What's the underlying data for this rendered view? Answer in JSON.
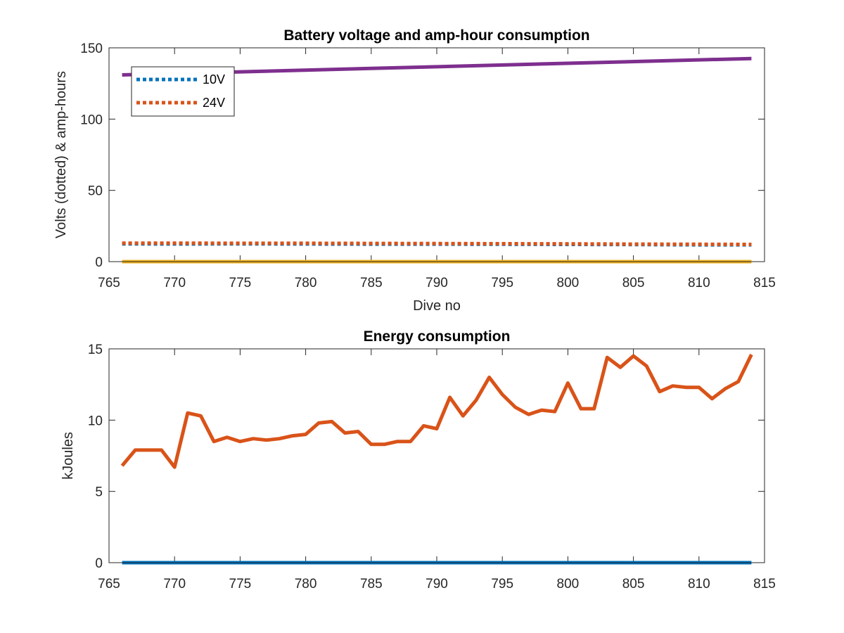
{
  "chart_data": [
    {
      "type": "line",
      "title": "Battery voltage and amp-hour consumption",
      "xlabel": "Dive no",
      "ylabel": "Volts (dotted) & amp-hours",
      "xlim": [
        765,
        815
      ],
      "ylim": [
        0,
        150
      ],
      "xticks": [
        765,
        770,
        775,
        780,
        785,
        790,
        795,
        800,
        805,
        810,
        815
      ],
      "yticks": [
        0,
        50,
        100,
        150
      ],
      "legend_position": "top-left",
      "series": [
        {
          "name": "10V",
          "style": "dotted",
          "color": "#0072BD",
          "in_legend": true,
          "x": [
            766,
            770,
            775,
            780,
            785,
            790,
            795,
            800,
            805,
            810,
            814
          ],
          "y": [
            12.5,
            12.4,
            12.5,
            12.4,
            12.3,
            12.3,
            12.2,
            12.1,
            12.0,
            11.8,
            11.8
          ]
        },
        {
          "name": "24V",
          "style": "dotted",
          "color": "#D95319",
          "in_legend": true,
          "x": [
            766,
            770,
            775,
            780,
            785,
            790,
            795,
            800,
            805,
            810,
            814
          ],
          "y": [
            13.0,
            13.0,
            12.9,
            12.9,
            12.8,
            12.7,
            12.6,
            12.5,
            12.3,
            12.2,
            12.1
          ]
        },
        {
          "style": "solid",
          "color": "#EDB120",
          "in_legend": false,
          "x": [
            766,
            814
          ],
          "y": [
            0,
            0
          ]
        },
        {
          "style": "solid",
          "color": "#7E2F8E",
          "in_legend": false,
          "x": [
            766,
            814
          ],
          "y": [
            131,
            142.5
          ]
        }
      ]
    },
    {
      "type": "line",
      "title": "Energy consumption",
      "xlabel": "",
      "ylabel": "kJoules",
      "xlim": [
        765,
        815
      ],
      "ylim": [
        0,
        15
      ],
      "xticks": [
        765,
        770,
        775,
        780,
        785,
        790,
        795,
        800,
        805,
        810,
        815
      ],
      "yticks": [
        0,
        5,
        10,
        15
      ],
      "series": [
        {
          "style": "solid",
          "color": "#0072BD",
          "x": [
            766,
            814
          ],
          "y": [
            0,
            0
          ]
        },
        {
          "style": "solid",
          "color": "#D95319",
          "x": [
            766,
            767,
            768,
            769,
            770,
            771,
            772,
            773,
            774,
            775,
            776,
            777,
            778,
            779,
            780,
            781,
            782,
            783,
            784,
            785,
            786,
            787,
            788,
            789,
            790,
            791,
            792,
            793,
            794,
            795,
            796,
            797,
            798,
            799,
            800,
            801,
            802,
            803,
            804,
            805,
            806,
            807,
            808,
            809,
            810,
            811,
            812,
            813,
            814
          ],
          "y": [
            6.8,
            7.9,
            7.9,
            7.9,
            6.7,
            10.5,
            10.3,
            8.5,
            8.8,
            8.5,
            8.7,
            8.6,
            8.7,
            8.9,
            9.0,
            9.8,
            9.9,
            9.1,
            9.2,
            8.3,
            8.3,
            8.5,
            8.5,
            9.6,
            9.4,
            11.6,
            10.3,
            11.4,
            13.0,
            11.8,
            10.9,
            10.4,
            10.7,
            10.6,
            12.6,
            10.8,
            10.8,
            14.4,
            13.7,
            14.5,
            13.8,
            12.0,
            12.4,
            12.3,
            12.3,
            11.5,
            12.2,
            12.7,
            14.6
          ]
        }
      ]
    }
  ]
}
